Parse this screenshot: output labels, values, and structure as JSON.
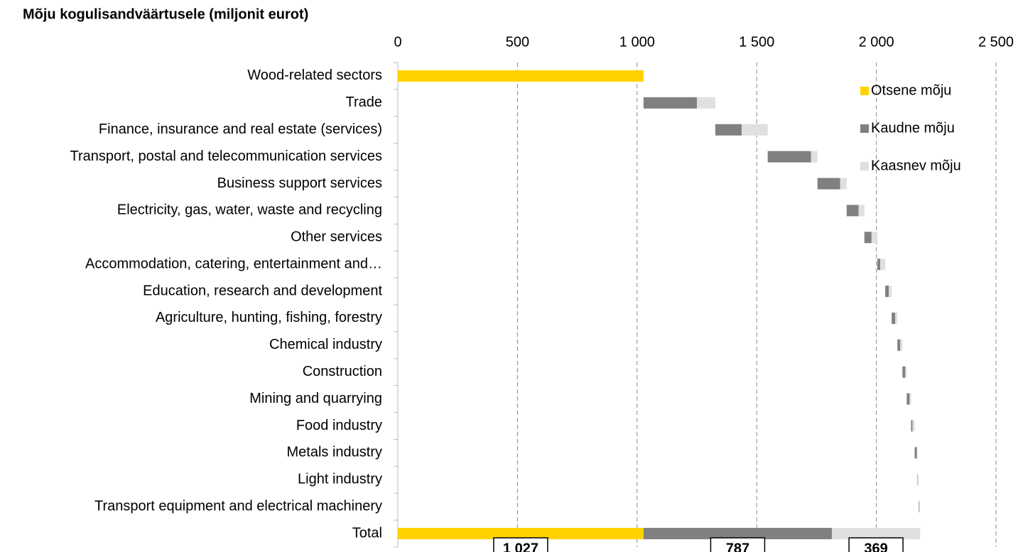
{
  "chart_data": {
    "type": "waterfall-bar",
    "title": "Mõju kogulisandväärtusele (miljonit eurot)",
    "categories": [
      "Wood-related sectors",
      "Trade",
      "Finance, insurance and real estate (services)",
      "Transport, postal and telecommunication services",
      "Business support services",
      "Electricity, gas, water, waste and recycling",
      "Other services",
      "Accommodation, catering, entertainment and…",
      "Education, research and development",
      "Agriculture, hunting, fishing, forestry",
      "Chemical industry",
      "Construction",
      "Mining and quarrying",
      "Food industry",
      "Metals industry",
      "Light industry",
      "Transport equipment and electrical machinery",
      "Total"
    ],
    "series": [
      {
        "name": "Otsene mõju",
        "color": "#FFD200",
        "values": [
          1027,
          0,
          0,
          0,
          0,
          0,
          0,
          0,
          0,
          0,
          0,
          0,
          0,
          0,
          0,
          0,
          0,
          1027
        ],
        "value_labels": [
          null,
          null,
          null,
          null,
          null,
          null,
          null,
          null,
          null,
          null,
          null,
          null,
          null,
          null,
          null,
          null,
          null,
          "1 027"
        ]
      },
      {
        "name": "Kaudne mõju",
        "color": "#808080",
        "values": [
          0,
          223,
          110,
          181,
          95,
          50,
          30,
          12,
          15,
          15,
          12,
          12,
          12,
          6,
          9,
          2,
          2,
          787
        ],
        "value_labels": [
          null,
          null,
          null,
          null,
          null,
          null,
          null,
          null,
          null,
          null,
          null,
          null,
          null,
          null,
          null,
          null,
          null,
          "787"
        ]
      },
      {
        "name": "Kaasnev mõju",
        "color": "#E0E0E0",
        "values": [
          0,
          77,
          109,
          27,
          27,
          24,
          24,
          21,
          12,
          9,
          9,
          6,
          6,
          9,
          3,
          3,
          3,
          369
        ],
        "value_labels": [
          null,
          null,
          null,
          null,
          null,
          null,
          null,
          null,
          null,
          null,
          null,
          null,
          null,
          null,
          null,
          null,
          null,
          "369"
        ]
      }
    ],
    "xlim": [
      0,
      2500
    ],
    "xticks": [
      0,
      500,
      {
        "value": 1000,
        "label": "1 000"
      },
      {
        "value": 1500,
        "label": "1 500"
      },
      {
        "value": 2000,
        "label": "2 000"
      },
      {
        "value": 2500,
        "label": "2 500"
      }
    ],
    "grid": true,
    "legend": "upper-right"
  }
}
